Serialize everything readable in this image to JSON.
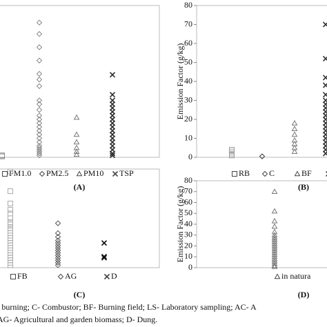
{
  "chart_data": [
    {
      "type": "scatter",
      "panel_label": "(A)",
      "ylim": [
        0,
        80
      ],
      "series": [
        {
          "name": "PM1.0",
          "marker": "square",
          "color": "#888",
          "values": [
            0.5,
            1
          ]
        },
        {
          "name": "PM2.5",
          "marker": "diamond",
          "color": "#888",
          "values": [
            71,
            65,
            58,
            51,
            44,
            41,
            37.5,
            30,
            28,
            25,
            22,
            20,
            18,
            16,
            14,
            12,
            10,
            8,
            6,
            5,
            4,
            3,
            2,
            1
          ]
        },
        {
          "name": "PM10",
          "marker": "triangle",
          "color": "#777",
          "values": [
            21,
            12,
            8,
            5,
            3,
            1.5
          ]
        },
        {
          "name": "TSP",
          "marker": "cross",
          "color": "#333",
          "values": [
            43.5,
            33,
            30,
            28,
            26,
            24,
            22,
            20,
            18,
            16,
            14,
            12,
            10,
            8,
            6,
            4,
            2,
            1
          ]
        }
      ]
    },
    {
      "type": "scatter",
      "panel_label": "(B)",
      "ylabel": "Emission Factor (g/kg)",
      "ylim": [
        0,
        80
      ],
      "yticks": [
        0,
        10,
        20,
        30,
        40,
        50,
        60,
        70,
        80
      ],
      "series": [
        {
          "name": "RB",
          "marker": "square",
          "color": "#999",
          "values": [
            4,
            3,
            2,
            1
          ]
        },
        {
          "name": "C",
          "marker": "diamond",
          "color": "#333",
          "values": [
            0.5
          ]
        },
        {
          "name": "BF",
          "marker": "triangle",
          "color": "#777",
          "values": [
            18,
            15,
            12,
            9,
            7,
            5,
            3
          ]
        },
        {
          "name": "LS",
          "marker": "cross",
          "color": "#333",
          "values": [
            70,
            52,
            42,
            38,
            33,
            30,
            28,
            26,
            24,
            22,
            20,
            18,
            16,
            14,
            12,
            10,
            8,
            6,
            4,
            2
          ]
        }
      ]
    },
    {
      "type": "scatter",
      "panel_label": "(C)",
      "ylim": [
        0,
        80
      ],
      "series": [
        {
          "name": "FB",
          "marker": "square",
          "color": "#aaa",
          "values": [
            78,
            62,
            52,
            47,
            44,
            40,
            37,
            35,
            32,
            30,
            28,
            26,
            24,
            22,
            20,
            18,
            16,
            14,
            12,
            10,
            8,
            6,
            4,
            2
          ]
        },
        {
          "name": "AG",
          "marker": "diamond",
          "color": "#555",
          "values": [
            36,
            28,
            25,
            22,
            20,
            18,
            16,
            14,
            12,
            10,
            8,
            6,
            4,
            2
          ]
        },
        {
          "name": "D",
          "marker": "cross",
          "color": "#111",
          "values": [
            20,
            9,
            8
          ]
        }
      ]
    },
    {
      "type": "scatter",
      "panel_label": "(D)",
      "ylabel": "Emission Factor (g/kg)",
      "ylim": [
        0,
        80
      ],
      "yticks": [
        0,
        10,
        20,
        30,
        40,
        50,
        60,
        70,
        80
      ],
      "series": [
        {
          "name": "in natura",
          "marker": "triangle",
          "color": "#777",
          "values": [
            70,
            52,
            43,
            38,
            33,
            30,
            28,
            26,
            24,
            22,
            20,
            18,
            16,
            14,
            12,
            10,
            8,
            6,
            4,
            2,
            1
          ]
        }
      ]
    }
  ],
  "caption": [
    "l burning; C- Combustor; BF- Burning field; LS- Laboratory sampling; AC- A",
    "AG- Agricultural and garden biomass; D- Dung."
  ]
}
